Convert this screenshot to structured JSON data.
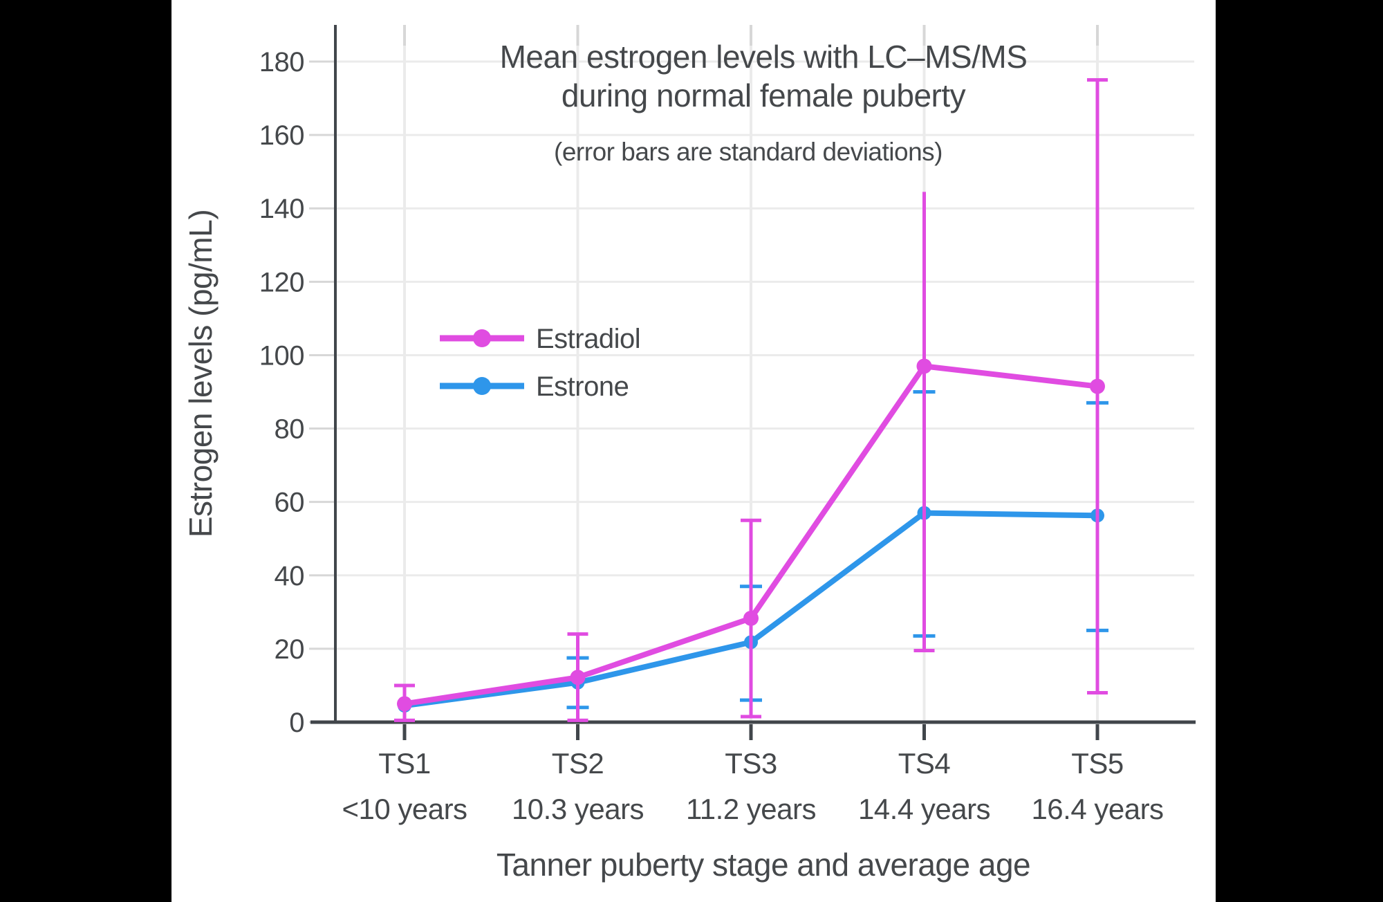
{
  "frame": {
    "background_color": "#000000",
    "canvas_color": "#ffffff",
    "text_color": "#45484b",
    "axis_color": "#41464b",
    "gridline_color": "#ebebeb",
    "tick_color": "#d7d7d7"
  },
  "chart_data": {
    "type": "line",
    "title_line1": "Mean estrogen levels with LC–MS/MS",
    "title_line2": "during normal female puberty",
    "subtitle": "(error bars are standard deviations)",
    "xlabel": "Tanner puberty stage and average age",
    "ylabel": "Estrogen levels (pg/mL)",
    "ylim": [
      0,
      190
    ],
    "yticks": [
      0,
      20,
      40,
      60,
      80,
      100,
      120,
      140,
      160,
      180
    ],
    "grid": true,
    "legend_position": "upper-left-inside",
    "categories": [
      {
        "stage": "TS1",
        "age": "<10 years"
      },
      {
        "stage": "TS2",
        "age": "10.3 years"
      },
      {
        "stage": "TS3",
        "age": "11.2 years"
      },
      {
        "stage": "TS4",
        "age": "14.4 years"
      },
      {
        "stage": "TS5",
        "age": "16.4 years"
      }
    ],
    "series": [
      {
        "name": "Estrone",
        "color": "#2e96ea",
        "values": [
          4.5,
          10.8,
          21.8,
          57,
          56.3
        ],
        "error_low": [
          null,
          4,
          6,
          23.5,
          25
        ],
        "error_high": [
          null,
          17.5,
          37,
          90,
          87
        ],
        "upper_cap": [
          false,
          true,
          true,
          true,
          true
        ],
        "lower_cap": [
          false,
          true,
          true,
          true,
          true
        ],
        "marker_radius": 10,
        "cap_half_width": 16
      },
      {
        "name": "Estradiol",
        "color": "#e04ce1",
        "values": [
          5,
          12.2,
          28.3,
          97,
          91.5
        ],
        "error_low": [
          0.5,
          0.5,
          1.5,
          19.5,
          8
        ],
        "error_high": [
          10,
          24,
          55,
          144.5,
          175
        ],
        "upper_cap": [
          true,
          true,
          true,
          false,
          true
        ],
        "lower_cap": [
          true,
          true,
          true,
          true,
          true
        ],
        "marker_radius": 11,
        "cap_half_width": 15
      }
    ],
    "legend_order": [
      "Estradiol",
      "Estrone"
    ]
  }
}
